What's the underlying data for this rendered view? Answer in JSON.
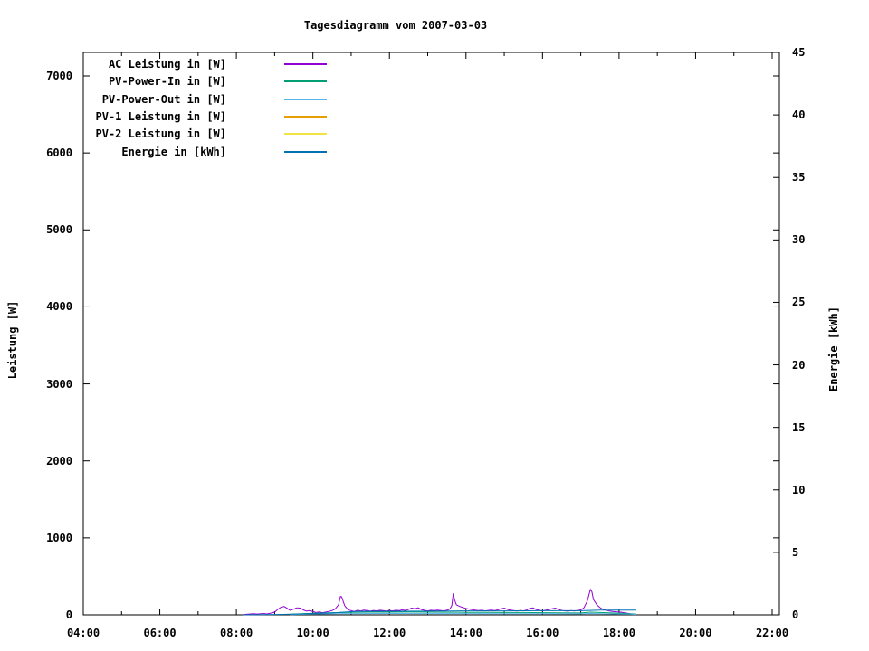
{
  "title": "Tagesdiagramm vom 2007-03-03",
  "axes": {
    "x": {
      "major": [
        {
          "h": 4,
          "label": "04:00"
        },
        {
          "h": 6,
          "label": "06:00"
        },
        {
          "h": 8,
          "label": "08:00"
        },
        {
          "h": 10,
          "label": "10:00"
        },
        {
          "h": 12,
          "label": "12:00"
        },
        {
          "h": 14,
          "label": "14:00"
        },
        {
          "h": 16,
          "label": "16:00"
        },
        {
          "h": 18,
          "label": "18:00"
        },
        {
          "h": 20,
          "label": "20:00"
        },
        {
          "h": 22,
          "label": "22:00"
        }
      ],
      "minor": [
        5,
        7,
        9,
        11,
        13,
        15,
        17,
        19,
        21
      ],
      "range_hours": [
        4,
        22
      ]
    },
    "y1": {
      "label": "Leistung [W]",
      "ticks": [
        {
          "v": 0,
          "label": "0"
        },
        {
          "v": 1000,
          "label": "1000"
        },
        {
          "v": 2000,
          "label": "2000"
        },
        {
          "v": 3000,
          "label": "3000"
        },
        {
          "v": 4000,
          "label": "4000"
        },
        {
          "v": 5000,
          "label": "5000"
        },
        {
          "v": 6000,
          "label": "6000"
        },
        {
          "v": 7000,
          "label": "7000"
        }
      ],
      "range": [
        0,
        7311
      ]
    },
    "y2": {
      "label": "Energie [kWh]",
      "ticks": [
        {
          "v": 0,
          "label": "0"
        },
        {
          "v": 5,
          "label": "5"
        },
        {
          "v": 10,
          "label": "10"
        },
        {
          "v": 15,
          "label": "15"
        },
        {
          "v": 20,
          "label": "20"
        },
        {
          "v": 25,
          "label": "25"
        },
        {
          "v": 30,
          "label": "30"
        },
        {
          "v": 35,
          "label": "35"
        },
        {
          "v": 40,
          "label": "40"
        },
        {
          "v": 45,
          "label": "45"
        }
      ],
      "range": [
        0,
        45
      ]
    }
  },
  "chart_data": {
    "type": "line",
    "title": "Tagesdiagramm vom 2007-03-03",
    "xlabel": "",
    "ylabel_left": "Leistung [W]",
    "ylabel_right": "Energie [kWh]",
    "x_unit": "time (HH:MM)",
    "grid": false,
    "legend_position": "top-left-inside",
    "series": [
      {
        "name": "AC Leistung in [W]",
        "color": "#9400d3",
        "axis": "y1",
        "points": [
          [
            8.17,
            2
          ],
          [
            8.3,
            8
          ],
          [
            8.45,
            15
          ],
          [
            8.55,
            10
          ],
          [
            8.7,
            18
          ],
          [
            8.8,
            12
          ],
          [
            8.9,
            22
          ],
          [
            9.0,
            35
          ],
          [
            9.08,
            70
          ],
          [
            9.17,
            100
          ],
          [
            9.25,
            108
          ],
          [
            9.33,
            85
          ],
          [
            9.4,
            60
          ],
          [
            9.5,
            75
          ],
          [
            9.58,
            92
          ],
          [
            9.67,
            88
          ],
          [
            9.75,
            65
          ],
          [
            9.83,
            48
          ],
          [
            9.92,
            55
          ],
          [
            10.0,
            42
          ],
          [
            10.08,
            30
          ],
          [
            10.17,
            38
          ],
          [
            10.25,
            28
          ],
          [
            10.33,
            35
          ],
          [
            10.42,
            45
          ],
          [
            10.5,
            55
          ],
          [
            10.58,
            75
          ],
          [
            10.67,
            130
          ],
          [
            10.72,
            240
          ],
          [
            10.75,
            235
          ],
          [
            10.83,
            120
          ],
          [
            10.92,
            65
          ],
          [
            11.0,
            55
          ],
          [
            11.08,
            45
          ],
          [
            11.17,
            60
          ],
          [
            11.25,
            50
          ],
          [
            11.33,
            62
          ],
          [
            11.42,
            55
          ],
          [
            11.5,
            48
          ],
          [
            11.58,
            58
          ],
          [
            11.67,
            52
          ],
          [
            11.75,
            60
          ],
          [
            11.83,
            55
          ],
          [
            11.92,
            50
          ],
          [
            12.0,
            58
          ],
          [
            12.08,
            52
          ],
          [
            12.17,
            60
          ],
          [
            12.25,
            55
          ],
          [
            12.33,
            65
          ],
          [
            12.42,
            58
          ],
          [
            12.5,
            72
          ],
          [
            12.58,
            88
          ],
          [
            12.67,
            80
          ],
          [
            12.75,
            92
          ],
          [
            12.83,
            70
          ],
          [
            12.92,
            58
          ],
          [
            13.0,
            52
          ],
          [
            13.08,
            60
          ],
          [
            13.17,
            55
          ],
          [
            13.25,
            62
          ],
          [
            13.33,
            58
          ],
          [
            13.42,
            52
          ],
          [
            13.5,
            60
          ],
          [
            13.58,
            75
          ],
          [
            13.63,
            120
          ],
          [
            13.67,
            280
          ],
          [
            13.7,
            200
          ],
          [
            13.75,
            130
          ],
          [
            13.83,
            110
          ],
          [
            13.92,
            95
          ],
          [
            14.0,
            85
          ],
          [
            14.08,
            75
          ],
          [
            14.17,
            68
          ],
          [
            14.25,
            60
          ],
          [
            14.33,
            55
          ],
          [
            14.42,
            60
          ],
          [
            14.5,
            52
          ],
          [
            14.58,
            58
          ],
          [
            14.67,
            62
          ],
          [
            14.75,
            55
          ],
          [
            14.83,
            65
          ],
          [
            14.92,
            80
          ],
          [
            15.0,
            88
          ],
          [
            15.08,
            72
          ],
          [
            15.17,
            60
          ],
          [
            15.25,
            55
          ],
          [
            15.33,
            50
          ],
          [
            15.42,
            58
          ],
          [
            15.5,
            52
          ],
          [
            15.58,
            62
          ],
          [
            15.67,
            85
          ],
          [
            15.75,
            90
          ],
          [
            15.83,
            70
          ],
          [
            15.92,
            58
          ],
          [
            16.0,
            52
          ],
          [
            16.08,
            60
          ],
          [
            16.17,
            68
          ],
          [
            16.25,
            80
          ],
          [
            16.33,
            88
          ],
          [
            16.42,
            70
          ],
          [
            16.5,
            58
          ],
          [
            16.58,
            52
          ],
          [
            16.67,
            48
          ],
          [
            16.75,
            55
          ],
          [
            16.83,
            50
          ],
          [
            16.92,
            58
          ],
          [
            17.0,
            65
          ],
          [
            17.08,
            90
          ],
          [
            17.17,
            180
          ],
          [
            17.25,
            330
          ],
          [
            17.29,
            300
          ],
          [
            17.33,
            200
          ],
          [
            17.42,
            130
          ],
          [
            17.5,
            95
          ],
          [
            17.58,
            72
          ],
          [
            17.67,
            60
          ],
          [
            17.75,
            50
          ],
          [
            17.83,
            45
          ],
          [
            17.92,
            40
          ],
          [
            18.0,
            38
          ],
          [
            18.08,
            32
          ],
          [
            18.17,
            25
          ],
          [
            18.25,
            18
          ],
          [
            18.33,
            10
          ]
        ]
      },
      {
        "name": "PV-Power-In in [W]",
        "color": "#009e73",
        "axis": "y1",
        "points": [
          [
            9.4,
            8
          ],
          [
            9.7,
            15
          ],
          [
            10.0,
            20
          ],
          [
            10.5,
            28
          ],
          [
            11.0,
            32
          ],
          [
            11.5,
            35
          ],
          [
            12.0,
            35
          ],
          [
            12.5,
            36
          ],
          [
            13.0,
            35
          ],
          [
            13.5,
            34
          ],
          [
            14.0,
            33
          ],
          [
            14.5,
            32
          ],
          [
            15.0,
            30
          ],
          [
            15.5,
            30
          ],
          [
            16.0,
            28
          ],
          [
            16.5,
            26
          ],
          [
            17.0,
            25
          ],
          [
            17.25,
            35
          ],
          [
            17.5,
            30
          ],
          [
            18.0,
            22
          ],
          [
            18.3,
            15
          ],
          [
            18.45,
            10
          ]
        ]
      },
      {
        "name": "PV-Power-Out in [W]",
        "color": "#56b4e9",
        "axis": "y1",
        "points": [
          [
            9.4,
            4
          ],
          [
            10.0,
            10
          ],
          [
            10.5,
            14
          ],
          [
            11.0,
            16
          ],
          [
            12.0,
            18
          ],
          [
            13.0,
            17
          ],
          [
            14.0,
            16
          ],
          [
            15.0,
            15
          ],
          [
            16.0,
            14
          ],
          [
            17.0,
            13
          ],
          [
            17.25,
            18
          ],
          [
            17.5,
            15
          ],
          [
            18.0,
            11
          ],
          [
            18.3,
            8
          ],
          [
            18.45,
            5
          ]
        ]
      },
      {
        "name": "PV-1 Leistung in [W]",
        "color": "#e69f00",
        "axis": "y1",
        "points": []
      },
      {
        "name": "PV-2 Leistung in [W]",
        "color": "#f0e442",
        "axis": "y1",
        "points": []
      },
      {
        "name": "Energie in [kWh]",
        "color": "#0072b2",
        "axis": "y2",
        "points": [
          [
            8.17,
            0.0
          ],
          [
            9.0,
            0.03
          ],
          [
            9.5,
            0.06
          ],
          [
            10.0,
            0.1
          ],
          [
            10.5,
            0.15
          ],
          [
            10.75,
            0.21
          ],
          [
            11.17,
            0.28
          ],
          [
            12.0,
            0.29
          ],
          [
            13.0,
            0.3
          ],
          [
            13.7,
            0.31
          ],
          [
            14.0,
            0.32
          ],
          [
            15.0,
            0.32
          ],
          [
            16.0,
            0.33
          ],
          [
            17.0,
            0.33
          ],
          [
            17.33,
            0.36
          ],
          [
            17.5,
            0.375
          ],
          [
            18.0,
            0.38
          ],
          [
            18.45,
            0.38
          ]
        ]
      }
    ]
  }
}
